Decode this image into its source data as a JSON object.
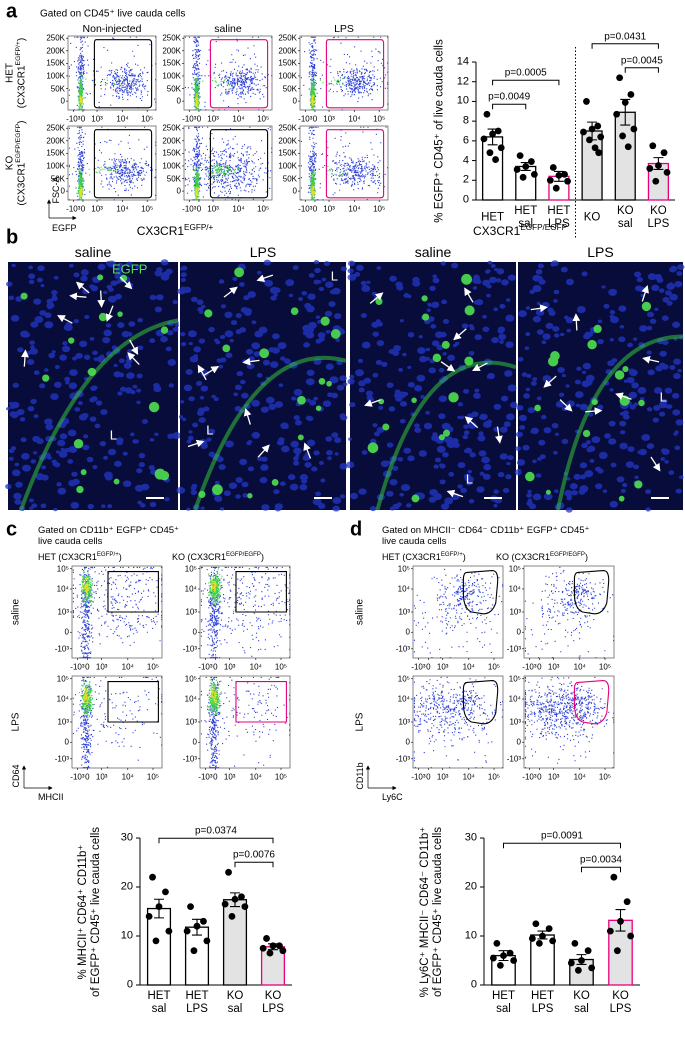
{
  "panel_labels": [
    "a",
    "b",
    "c",
    "d"
  ],
  "panel_a": {
    "gate_note": "Gated on CD45⁺ live cauda cells",
    "columns": [
      "Non-injected",
      "saline",
      "LPS"
    ],
    "rows": [
      [
        "HET\n(CX3CR1",
        "EGFP/+",
        ")"
      ],
      [
        "KO\n(CX3CR1",
        "EGFP/EGFP",
        ")"
      ]
    ],
    "y_axis": "FSC-A",
    "x_axis": "EGFP",
    "yticks": [
      "250K",
      "200K",
      "150K",
      "100K",
      "50K",
      "0"
    ],
    "xticks": [
      "-10³",
      "0",
      "10³",
      "10⁴",
      "10⁵"
    ]
  },
  "panel_b": {
    "titles": [
      [
        "CX3CR1",
        "EGFP/+"
      ],
      [
        "CX3CR1",
        "EGFP/EGFP"
      ]
    ],
    "columns": [
      "saline",
      "LPS",
      "saline",
      "LPS"
    ],
    "channel": "EGFP",
    "lumen": "L"
  },
  "panel_c": {
    "gate_note": "Gated on CD11b⁺ EGFP⁺ CD45⁺\nlive cauda cells",
    "columns": [
      [
        "HET (CX3CR1",
        "EGFP/+",
        ")"
      ],
      [
        "KO (CX3CR1",
        "EGFP/EGFP",
        ")"
      ]
    ],
    "rows": [
      "saline",
      "LPS"
    ],
    "y_axis": "CD64",
    "x_axis": "MHCII",
    "yticks": [
      "10⁵",
      "10⁴",
      "10³",
      "0",
      "-10³"
    ],
    "xticks": [
      "-10³",
      "0",
      "10³",
      "10⁴",
      "10⁵"
    ]
  },
  "panel_d": {
    "gate_note": "Gated on MHCII⁻ CD64⁻ CD11b⁺ EGFP⁺ CD45⁺\nlive cauda cells",
    "columns": [
      [
        "HET (CX3CR1",
        "EGFP/+",
        ")"
      ],
      [
        "KO (CX3CR1",
        "EGFP/EGFP",
        ")"
      ]
    ],
    "rows": [
      "saline",
      "LPS"
    ],
    "y_axis": "CD11b",
    "x_axis": "Ly6C",
    "yticks": [
      "10⁵",
      "10⁴",
      "10³",
      "0",
      "-10³"
    ],
    "xticks": [
      "-10³",
      "0",
      "10³",
      "10⁴",
      "10⁵"
    ]
  },
  "chart_data": [
    {
      "type": "bar",
      "y_label": "% EGFP⁺ CD45⁺ of live cauda cells",
      "categories": [
        "HET",
        "HET\nsal",
        "HET\nLPS",
        "KO",
        "KO\nsal",
        "KO\nLPS"
      ],
      "values": [
        6.4,
        3.4,
        2.4,
        7.0,
        8.9,
        3.7
      ],
      "errors": [
        0.8,
        0.4,
        0.5,
        0.9,
        1.3,
        0.6
      ],
      "points": [
        [
          8.7,
          7.0,
          6.7,
          6.2,
          5.3,
          4.8,
          4.1
        ],
        [
          4.5,
          3.9,
          3.4,
          3.1,
          2.6,
          2.3
        ],
        [
          3.3,
          2.6,
          2.5,
          2.0,
          1.9,
          1.2
        ],
        [
          10.0,
          7.5,
          7.2,
          6.9,
          6.4,
          6.1,
          5.3,
          4.8
        ],
        [
          12.4,
          10.7,
          9.9,
          8.7,
          7.2,
          6.5,
          5.4
        ],
        [
          5.5,
          4.8,
          3.5,
          3.2,
          2.8,
          1.9
        ]
      ],
      "fills": [
        "#ffffff",
        "#ffffff",
        "#ffffff",
        "#e3e3e3",
        "#e3e3e3",
        "#e3e3e3"
      ],
      "edges": [
        "#000000",
        "#000000",
        "#e5007e",
        "#000000",
        "#000000",
        "#e5007e"
      ],
      "ylim": [
        0,
        14
      ],
      "yticks": [
        0,
        2,
        4,
        6,
        8,
        10,
        12,
        14
      ],
      "divider_after": 2,
      "annotations": [
        {
          "text": "p=0.0049",
          "from": 0,
          "to": 1
        },
        {
          "text": "p=0.0005",
          "from": 0,
          "to": 2
        },
        {
          "text": "p=0.0045",
          "from": 4,
          "to": 5
        },
        {
          "text": "p=0.0431",
          "from": 3,
          "to": 5
        }
      ]
    },
    {
      "type": "bar",
      "y_label": "% MHCII⁺ CD64⁺ CD11b⁺\nof EGFP⁺ CD45⁺ live cauda cells",
      "categories": [
        "HET\nsal",
        "HET\nLPS",
        "KO\nsal",
        "KO\nLPS"
      ],
      "values": [
        15.6,
        11.8,
        17.4,
        7.8
      ],
      "errors": [
        1.9,
        1.6,
        1.4,
        0.6
      ],
      "points": [
        [
          22,
          19,
          16,
          14,
          11,
          9
        ],
        [
          16,
          13,
          12,
          11,
          9,
          7
        ],
        [
          23,
          18,
          17.5,
          16.5,
          16,
          14
        ],
        [
          9.5,
          8,
          8,
          7.5,
          7,
          6.5
        ]
      ],
      "fills": [
        "#ffffff",
        "#ffffff",
        "#e3e3e3",
        "#e3e3e3"
      ],
      "edges": [
        "#000000",
        "#000000",
        "#000000",
        "#e5007e"
      ],
      "ylim": [
        0,
        30
      ],
      "yticks": [
        0,
        10,
        20,
        30
      ],
      "annotations": [
        {
          "text": "p=0.0076",
          "from": 2,
          "to": 3
        },
        {
          "text": "p=0.0374",
          "from": 0,
          "to": 3
        }
      ]
    },
    {
      "type": "bar",
      "y_label": "% Ly6C⁺ MHCII⁻ CD64⁻ CD11b⁺\nof EGFP⁺ CD45⁺ live cauda cells",
      "categories": [
        "HET\nsal",
        "HET\nLPS",
        "KO\nsal",
        "KO\nLPS"
      ],
      "values": [
        6.0,
        10.2,
        5.2,
        13.2
      ],
      "errors": [
        1.0,
        0.8,
        1.0,
        2.2
      ],
      "points": [
        [
          8.5,
          6.5,
          6,
          5.5,
          5,
          4
        ],
        [
          12.5,
          11.5,
          10,
          9.5,
          9,
          8.5
        ],
        [
          8.5,
          7,
          5,
          4.5,
          3.5,
          3
        ],
        [
          22,
          17,
          13,
          11,
          10,
          7
        ]
      ],
      "fills": [
        "#ffffff",
        "#ffffff",
        "#e3e3e3",
        "#e3e3e3"
      ],
      "edges": [
        "#000000",
        "#000000",
        "#000000",
        "#e5007e"
      ],
      "ylim": [
        0,
        30
      ],
      "yticks": [
        0,
        10,
        20,
        30
      ],
      "annotations": [
        {
          "text": "p=0.0034",
          "from": 2,
          "to": 3
        },
        {
          "text": "p=0.0091",
          "from": 0,
          "to": 3
        }
      ]
    }
  ]
}
